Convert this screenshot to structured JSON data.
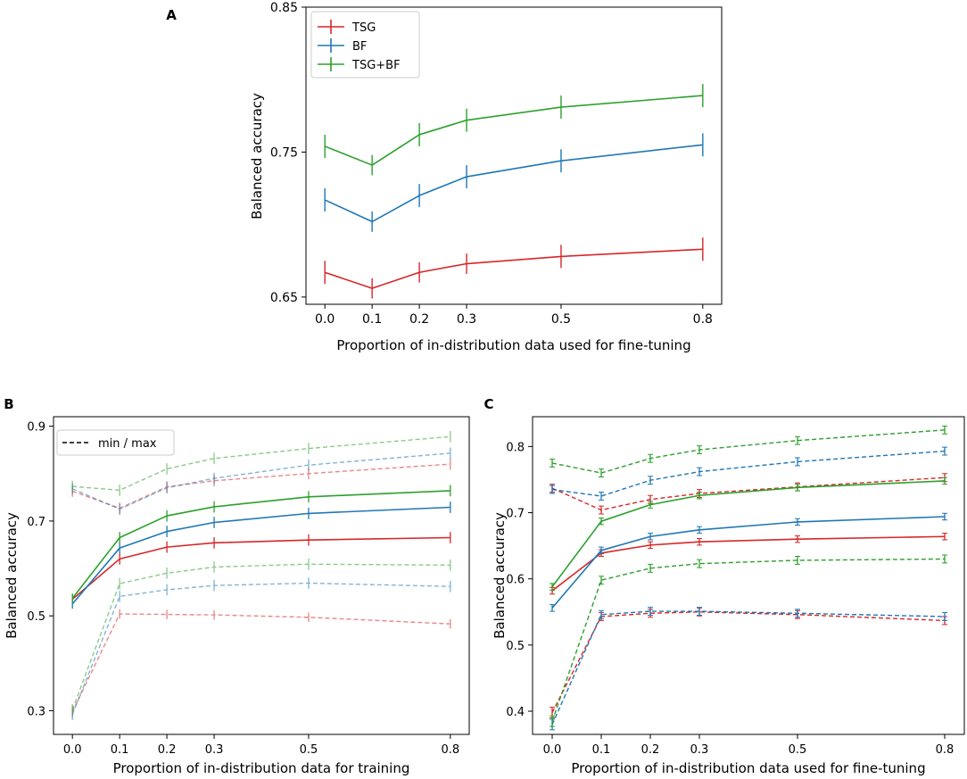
{
  "colors": {
    "TSG": "#d62728",
    "BF": "#1f77b4",
    "TSG+BF": "#2ca02c"
  },
  "chart_data": [
    {
      "panel": "A",
      "type": "line",
      "xlabel": "Proportion of in-distribution data used for fine-tuning",
      "ylabel": "Balanced accuracy",
      "x": [
        0.0,
        0.1,
        0.2,
        0.3,
        0.5,
        0.8
      ],
      "xticks": [
        "0.0",
        "0.1",
        "0.2",
        "0.3",
        "0.5",
        "0.8"
      ],
      "yticks": [
        "0.65",
        "0.75",
        "0.85"
      ],
      "ylim": [
        0.645,
        0.85
      ],
      "xlim": [
        -0.04,
        0.84
      ],
      "legend": {
        "location": "top-left",
        "entries": [
          "TSG",
          "BF",
          "TSG+BF"
        ]
      },
      "series": [
        {
          "name": "TSG",
          "style": "solid",
          "values": [
            0.667,
            0.656,
            0.667,
            0.673,
            0.678,
            0.683
          ],
          "err": [
            0.008,
            0.007,
            0.007,
            0.007,
            0.008,
            0.008
          ]
        },
        {
          "name": "BF",
          "style": "solid",
          "values": [
            0.717,
            0.702,
            0.72,
            0.733,
            0.744,
            0.755
          ],
          "err": [
            0.008,
            0.007,
            0.008,
            0.008,
            0.008,
            0.008
          ]
        },
        {
          "name": "TSG+BF",
          "style": "solid",
          "values": [
            0.754,
            0.741,
            0.762,
            0.772,
            0.781,
            0.789
          ],
          "err": [
            0.008,
            0.007,
            0.008,
            0.008,
            0.008,
            0.008
          ]
        }
      ]
    },
    {
      "panel": "B",
      "type": "line",
      "xlabel": "Proportion of in-distribution data for training",
      "ylabel": "Balanced accuracy",
      "x": [
        0.0,
        0.1,
        0.2,
        0.3,
        0.5,
        0.8
      ],
      "xticks": [
        "0.0",
        "0.1",
        "0.2",
        "0.3",
        "0.5",
        "0.8"
      ],
      "yticks": [
        "0.3",
        "0.5",
        "0.7",
        "0.9"
      ],
      "ylim": [
        0.25,
        0.92
      ],
      "xlim": [
        -0.04,
        0.84
      ],
      "legend": {
        "location": "top-left",
        "entries": [
          "min / max"
        ]
      },
      "series": [
        {
          "name": "TSG",
          "style": "solid",
          "values": [
            0.535,
            0.62,
            0.645,
            0.654,
            0.66,
            0.665
          ],
          "err": [
            0.01,
            0.012,
            0.012,
            0.012,
            0.012,
            0.012
          ]
        },
        {
          "name": "BF",
          "style": "solid",
          "values": [
            0.525,
            0.643,
            0.678,
            0.697,
            0.716,
            0.729
          ],
          "err": [
            0.01,
            0.012,
            0.012,
            0.012,
            0.012,
            0.012
          ]
        },
        {
          "name": "TSG+BF",
          "style": "solid",
          "values": [
            0.537,
            0.665,
            0.711,
            0.73,
            0.751,
            0.764
          ],
          "err": [
            0.01,
            0.012,
            0.012,
            0.012,
            0.012,
            0.012
          ]
        },
        {
          "name": "TSG max",
          "style": "dashed",
          "faded": true,
          "color_of": "TSG",
          "values": [
            0.763,
            0.727,
            0.772,
            0.785,
            0.8,
            0.82
          ],
          "err": [
            0.012,
            0.012,
            0.012,
            0.012,
            0.012,
            0.012
          ]
        },
        {
          "name": "BF max",
          "style": "dashed",
          "faded": true,
          "color_of": "BF",
          "values": [
            0.768,
            0.725,
            0.77,
            0.79,
            0.818,
            0.843
          ],
          "err": [
            0.012,
            0.012,
            0.012,
            0.012,
            0.012,
            0.012
          ]
        },
        {
          "name": "TSG+BF max",
          "style": "dashed",
          "faded": true,
          "color_of": "TSG+BF",
          "values": [
            0.773,
            0.765,
            0.81,
            0.832,
            0.853,
            0.878
          ],
          "err": [
            0.012,
            0.012,
            0.012,
            0.012,
            0.012,
            0.012
          ]
        },
        {
          "name": "TSG min",
          "style": "dashed",
          "faded": true,
          "color_of": "TSG",
          "values": [
            0.298,
            0.504,
            0.503,
            0.502,
            0.497,
            0.483
          ],
          "err": [
            0.012,
            0.01,
            0.01,
            0.01,
            0.01,
            0.01
          ]
        },
        {
          "name": "BF min",
          "style": "dashed",
          "faded": true,
          "color_of": "BF",
          "values": [
            0.292,
            0.541,
            0.555,
            0.564,
            0.569,
            0.562
          ],
          "err": [
            0.012,
            0.012,
            0.012,
            0.012,
            0.012,
            0.012
          ]
        },
        {
          "name": "TSG+BF min",
          "style": "dashed",
          "faded": true,
          "color_of": "TSG+BF",
          "values": [
            0.302,
            0.568,
            0.59,
            0.603,
            0.609,
            0.607
          ],
          "err": [
            0.012,
            0.012,
            0.012,
            0.012,
            0.012,
            0.012
          ]
        }
      ]
    },
    {
      "panel": "C",
      "type": "line",
      "xlabel": "Proportion of in-distribution data used for fine-tuning",
      "ylabel": "Balanced accuracy",
      "x": [
        0.0,
        0.1,
        0.2,
        0.3,
        0.5,
        0.8
      ],
      "xticks": [
        "0.0",
        "0.1",
        "0.2",
        "0.3",
        "0.5",
        "0.8"
      ],
      "yticks": [
        "0.4",
        "0.5",
        "0.6",
        "0.7",
        "0.8"
      ],
      "ylim": [
        0.365,
        0.845
      ],
      "xlim": [
        -0.04,
        0.84
      ],
      "series": [
        {
          "name": "TSG",
          "style": "solid",
          "values": [
            0.582,
            0.639,
            0.651,
            0.656,
            0.66,
            0.664
          ],
          "err": [
            0.005,
            0.005,
            0.005,
            0.005,
            0.005,
            0.005
          ]
        },
        {
          "name": "BF",
          "style": "solid",
          "values": [
            0.556,
            0.643,
            0.664,
            0.674,
            0.686,
            0.694
          ],
          "err": [
            0.005,
            0.005,
            0.005,
            0.005,
            0.005,
            0.005
          ]
        },
        {
          "name": "TSG+BF",
          "style": "solid",
          "values": [
            0.588,
            0.687,
            0.712,
            0.726,
            0.738,
            0.748
          ],
          "err": [
            0.005,
            0.005,
            0.005,
            0.005,
            0.005,
            0.005
          ]
        },
        {
          "name": "TSG max",
          "style": "dashed",
          "color_of": "TSG",
          "values": [
            0.737,
            0.704,
            0.72,
            0.729,
            0.739,
            0.753
          ],
          "err": [
            0.006,
            0.006,
            0.006,
            0.006,
            0.006,
            0.006
          ]
        },
        {
          "name": "BF max",
          "style": "dashed",
          "color_of": "BF",
          "values": [
            0.735,
            0.725,
            0.749,
            0.762,
            0.777,
            0.793
          ],
          "err": [
            0.006,
            0.006,
            0.006,
            0.006,
            0.006,
            0.006
          ]
        },
        {
          "name": "TSG+BF max",
          "style": "dashed",
          "color_of": "TSG+BF",
          "values": [
            0.775,
            0.76,
            0.782,
            0.795,
            0.809,
            0.825
          ],
          "err": [
            0.006,
            0.006,
            0.006,
            0.006,
            0.006,
            0.006
          ]
        },
        {
          "name": "TSG min",
          "style": "dashed",
          "color_of": "TSG",
          "values": [
            0.398,
            0.543,
            0.548,
            0.55,
            0.546,
            0.537
          ],
          "err": [
            0.008,
            0.006,
            0.006,
            0.006,
            0.006,
            0.006
          ]
        },
        {
          "name": "BF min",
          "style": "dashed",
          "color_of": "BF",
          "values": [
            0.38,
            0.546,
            0.551,
            0.551,
            0.548,
            0.543
          ],
          "err": [
            0.008,
            0.006,
            0.006,
            0.006,
            0.006,
            0.006
          ]
        },
        {
          "name": "TSG+BF min",
          "style": "dashed",
          "color_of": "TSG+BF",
          "values": [
            0.385,
            0.598,
            0.616,
            0.623,
            0.628,
            0.63
          ],
          "err": [
            0.008,
            0.006,
            0.006,
            0.006,
            0.006,
            0.006
          ]
        }
      ]
    }
  ]
}
